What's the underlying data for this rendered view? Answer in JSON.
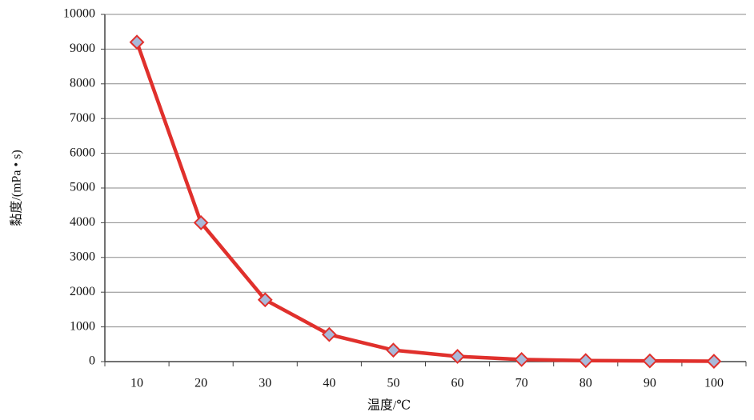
{
  "chart_data": {
    "type": "line",
    "x_label": "温度/℃",
    "y_label": "黏度/(mPa • s)",
    "categories": [
      "10",
      "20",
      "30",
      "40",
      "50",
      "60",
      "70",
      "80",
      "90",
      "100"
    ],
    "series": [
      {
        "color": "#e0302c",
        "marker_color": "#a9b9d9",
        "values": [
          9200,
          4000,
          1780,
          780,
          330,
          150,
          60,
          30,
          20,
          10
        ]
      }
    ],
    "ylim": [
      0,
      10000
    ],
    "yticks": [
      0,
      1000,
      2000,
      3000,
      4000,
      5000,
      6000,
      7000,
      8000,
      9000,
      10000
    ],
    "grid": true
  }
}
